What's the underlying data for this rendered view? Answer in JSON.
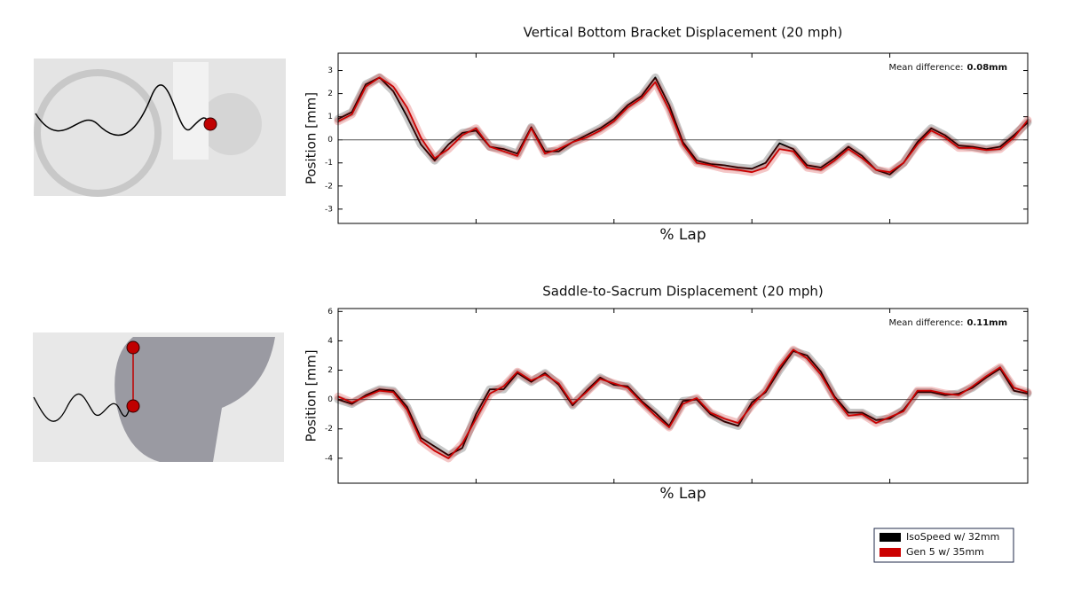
{
  "chart_data": [
    {
      "type": "line",
      "title": "Vertical Bottom Bracket Displacement (20 mph)",
      "xlabel": "% Lap",
      "ylabel": "Position [mm]",
      "annotation": {
        "label": "Mean difference:",
        "value": "0.08mm"
      },
      "zero_line": true,
      "x": [
        0,
        2,
        4,
        6,
        8,
        10,
        12,
        14,
        16,
        18,
        20,
        22,
        24,
        26,
        28,
        30,
        32,
        34,
        36,
        38,
        40,
        42,
        44,
        46,
        48,
        50,
        52,
        54,
        56,
        58,
        60,
        62,
        64,
        66,
        68,
        70,
        72,
        74,
        76,
        78,
        80,
        82,
        84,
        86,
        88,
        90,
        92,
        94,
        96,
        98,
        100
      ],
      "xlim": [
        0,
        100
      ],
      "xticks": [
        20,
        40,
        60,
        80
      ],
      "ylim": [
        -3.62,
        3.75
      ],
      "yticks": [
        -3,
        -2,
        -1,
        0,
        1,
        2,
        3
      ],
      "series": [
        {
          "name": "IsoSpeed w/ 32mm",
          "color": "#000000",
          "values": [
            0.9,
            1.2,
            2.4,
            2.7,
            2.1,
            1.0,
            -0.2,
            -0.9,
            -0.2,
            0.3,
            0.4,
            -0.3,
            -0.4,
            -0.6,
            0.55,
            -0.5,
            -0.5,
            -0.1,
            0.2,
            0.5,
            0.9,
            1.5,
            1.9,
            2.7,
            1.5,
            -0.1,
            -0.9,
            -1.05,
            -1.1,
            -1.2,
            -1.25,
            -1.0,
            -0.15,
            -0.4,
            -1.1,
            -1.2,
            -0.8,
            -0.3,
            -0.7,
            -1.3,
            -1.5,
            -1.0,
            -0.1,
            0.5,
            0.2,
            -0.25,
            -0.3,
            -0.4,
            -0.3,
            0.2,
            0.75
          ]
        },
        {
          "name": "Gen 5 w/ 35mm",
          "color": "#cc0000",
          "values": [
            0.8,
            1.1,
            2.3,
            2.7,
            2.3,
            1.4,
            0.1,
            -0.8,
            -0.4,
            0.2,
            0.5,
            -0.3,
            -0.5,
            -0.7,
            0.5,
            -0.6,
            -0.4,
            -0.1,
            0.1,
            0.4,
            0.8,
            1.4,
            1.8,
            2.5,
            1.3,
            -0.2,
            -1.0,
            -1.1,
            -1.25,
            -1.3,
            -1.4,
            -1.2,
            -0.4,
            -0.5,
            -1.2,
            -1.3,
            -0.9,
            -0.4,
            -0.8,
            -1.3,
            -1.4,
            -1.0,
            -0.2,
            0.4,
            0.1,
            -0.35,
            -0.35,
            -0.45,
            -0.4,
            0.1,
            0.85
          ]
        }
      ]
    },
    {
      "type": "line",
      "title": "Saddle-to-Sacrum Displacement (20 mph)",
      "xlabel": "% Lap",
      "ylabel": "Position [mm]",
      "annotation": {
        "label": "Mean difference:",
        "value": "0.11mm"
      },
      "zero_line": true,
      "x": [
        0,
        2,
        4,
        6,
        8,
        10,
        12,
        14,
        16,
        18,
        20,
        22,
        24,
        26,
        28,
        30,
        32,
        34,
        36,
        38,
        40,
        42,
        44,
        46,
        48,
        50,
        52,
        54,
        56,
        58,
        60,
        62,
        64,
        66,
        68,
        70,
        72,
        74,
        76,
        78,
        80,
        82,
        84,
        86,
        88,
        90,
        92,
        94,
        96,
        98,
        100
      ],
      "xlim": [
        0,
        100
      ],
      "xticks": [
        20,
        40,
        60,
        80
      ],
      "ylim": [
        -5.7,
        6.2
      ],
      "yticks": [
        -4,
        -2,
        0,
        2,
        4,
        6
      ],
      "series": [
        {
          "color": "#000000",
          "values": [
            0,
            -0.3,
            0.3,
            0.7,
            0.6,
            -0.5,
            -2.6,
            -3.2,
            -3.8,
            -3.3,
            -1.0,
            0.7,
            0.7,
            1.8,
            1.2,
            1.8,
            1.0,
            -0.4,
            0.6,
            1.5,
            1.0,
            0.9,
            -0.1,
            -0.9,
            -1.8,
            -0.1,
            0.0,
            -1.0,
            -1.5,
            -1.8,
            -0.2,
            0.5,
            2.0,
            3.3,
            3.0,
            1.9,
            0.2,
            -0.9,
            -0.9,
            -1.4,
            -1.3,
            -0.7,
            0.5,
            0.5,
            0.3,
            0.4,
            0.8,
            1.5,
            2.1,
            0.6,
            0.4
          ]
        },
        {
          "color": "#cc0000",
          "values": [
            0.2,
            -0.2,
            0.2,
            0.6,
            0.5,
            -0.7,
            -2.8,
            -3.5,
            -4.0,
            -3.0,
            -1.3,
            0.4,
            0.9,
            1.9,
            1.3,
            1.7,
            1.1,
            -0.3,
            0.5,
            1.4,
            1.1,
            0.8,
            -0.2,
            -1.1,
            -1.9,
            -0.3,
            0.1,
            -0.9,
            -1.3,
            -1.6,
            -0.4,
            0.6,
            2.2,
            3.4,
            2.8,
            1.7,
            0.1,
            -1.1,
            -1.0,
            -1.6,
            -1.2,
            -0.8,
            0.6,
            0.6,
            0.4,
            0.3,
            0.9,
            1.6,
            2.2,
            0.8,
            0.5
          ]
        }
      ]
    }
  ]
}
